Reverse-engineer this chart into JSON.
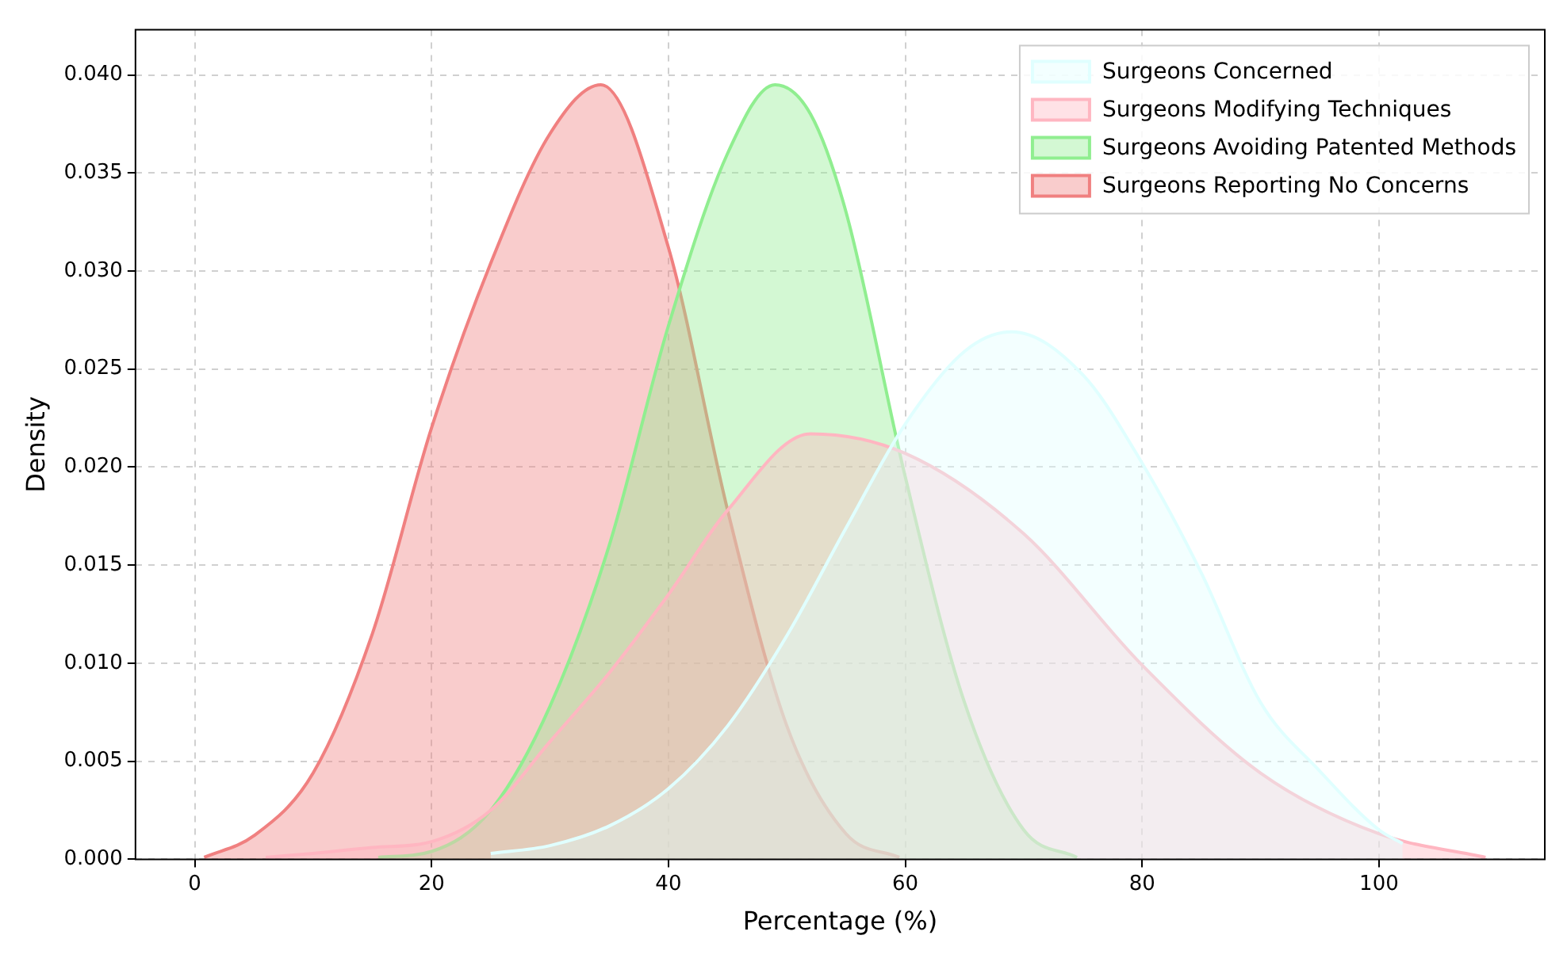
{
  "chart_data": {
    "type": "area",
    "xlabel": "Percentage (%)",
    "ylabel": "Density",
    "xlim": [
      -5,
      114
    ],
    "ylim": [
      0,
      0.0423
    ],
    "xticks": [
      0,
      20,
      40,
      60,
      80,
      100
    ],
    "yticks": [
      {
        "value": 0,
        "label": "0.000"
      },
      {
        "value": 0.005,
        "label": "0.005"
      },
      {
        "value": 0.01,
        "label": "0.010"
      },
      {
        "value": 0.015,
        "label": "0.015"
      },
      {
        "value": 0.02,
        "label": "0.020"
      },
      {
        "value": 0.025,
        "label": "0.025"
      },
      {
        "value": 0.03,
        "label": "0.030"
      },
      {
        "value": 0.035,
        "label": "0.035"
      },
      {
        "value": 0.04,
        "label": "0.040"
      }
    ],
    "grid": true,
    "legend": "top right",
    "marker": "none",
    "line_style": "solid",
    "series": [
      {
        "name": "Surgeons Concerned",
        "color": "#e0ffff",
        "x": [
          25,
          30,
          35,
          40,
          45,
          50,
          55,
          60,
          65,
          69,
          75,
          80,
          85,
          90,
          95,
          100,
          102
        ],
        "values": [
          0.0003,
          0.0007,
          0.0017,
          0.0036,
          0.0068,
          0.0114,
          0.0169,
          0.0222,
          0.0259,
          0.0269,
          0.0247,
          0.0202,
          0.0146,
          0.008,
          0.0045,
          0.0015,
          0.0008
        ]
      },
      {
        "name": "Surgeons Modifying Techniques",
        "color": "#ffb6c1",
        "x": [
          6,
          10,
          15,
          20,
          25,
          30,
          35,
          40,
          45,
          52,
          60,
          70,
          80,
          90,
          100,
          109
        ],
        "values": [
          0.0001,
          0.0003,
          0.0006,
          0.0009,
          0.0025,
          0.006,
          0.0095,
          0.0135,
          0.0178,
          0.0217,
          0.0207,
          0.0166,
          0.0099,
          0.0044,
          0.0013,
          0.0001
        ]
      },
      {
        "name": "Surgeons Avoiding Patented Methods",
        "color": "#90ee90",
        "x": [
          15.5,
          20,
          25,
          30,
          35,
          40,
          45,
          49,
          52,
          55,
          60,
          65,
          70,
          74.5
        ],
        "values": [
          0.0001,
          0.0004,
          0.0025,
          0.0078,
          0.016,
          0.0272,
          0.036,
          0.0395,
          0.038,
          0.033,
          0.0195,
          0.008,
          0.0015,
          0.0001
        ]
      },
      {
        "name": "Surgeons Reporting No Concerns",
        "color": "#f08080",
        "x": [
          0.8,
          5,
          10,
          15,
          20,
          25,
          30,
          34.3,
          40,
          45,
          50,
          55,
          59.5
        ],
        "values": [
          0.0001,
          0.0012,
          0.0044,
          0.0115,
          0.022,
          0.0304,
          0.037,
          0.0395,
          0.0312,
          0.0178,
          0.0068,
          0.0013,
          0.0001
        ]
      }
    ]
  }
}
